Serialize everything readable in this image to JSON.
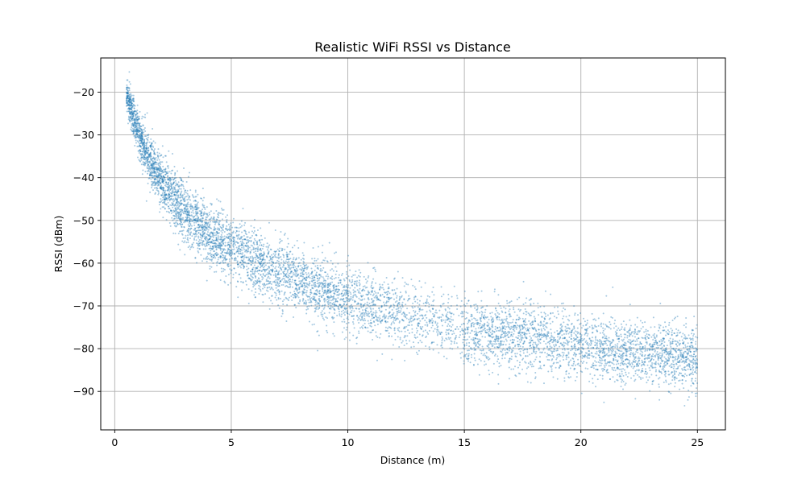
{
  "chart_data": {
    "type": "scatter",
    "title": "Realistic WiFi RSSI vs Distance",
    "xlabel": "Distance (m)",
    "ylabel": "RSSI (dBm)",
    "xlim": [
      -0.6,
      26.2
    ],
    "ylim": [
      -99,
      -12
    ],
    "xticks": [
      0,
      5,
      10,
      15,
      20,
      25
    ],
    "yticks": [
      -20,
      -30,
      -40,
      -50,
      -60,
      -70,
      -80,
      -90
    ],
    "grid": true,
    "point_color": "#1f77b4",
    "point_opacity": 0.4,
    "series": [
      {
        "trend": [
          [
            0.5,
            -20.5
          ],
          [
            0.75,
            -25.0
          ],
          [
            1.0,
            -29.5
          ],
          [
            1.25,
            -33.0
          ],
          [
            1.5,
            -36.0
          ],
          [
            2.0,
            -40.5
          ],
          [
            2.5,
            -44.5
          ],
          [
            3.0,
            -48.0
          ],
          [
            4.0,
            -53.0
          ],
          [
            5.0,
            -56.5
          ],
          [
            6.0,
            -59.5
          ],
          [
            7.0,
            -62.0
          ],
          [
            8.0,
            -64.0
          ],
          [
            9.0,
            -66.5
          ],
          [
            10.0,
            -68.5
          ],
          [
            11.0,
            -70.0
          ],
          [
            12.0,
            -71.5
          ],
          [
            13.0,
            -72.5
          ],
          [
            14.0,
            -73.5
          ],
          [
            15.0,
            -76.0
          ],
          [
            16.0,
            -76.5
          ],
          [
            17.0,
            -77.0
          ],
          [
            18.0,
            -77.5
          ],
          [
            19.0,
            -78.5
          ],
          [
            20.0,
            -79.5
          ],
          [
            21.0,
            -80.0
          ],
          [
            22.0,
            -80.5
          ],
          [
            23.0,
            -81.0
          ],
          [
            24.0,
            -82.0
          ],
          [
            25.0,
            -82.5
          ]
        ],
        "spread": [
          [
            0.5,
            2.0
          ],
          [
            1.0,
            2.5
          ],
          [
            2.0,
            3.0
          ],
          [
            3.0,
            3.3
          ],
          [
            5.0,
            3.6
          ],
          [
            10.0,
            3.8
          ],
          [
            12.0,
            3.9
          ],
          [
            15.0,
            3.9
          ],
          [
            20.0,
            3.9
          ],
          [
            25.0,
            3.8
          ]
        ],
        "x_range": [
          0.5,
          25.0
        ],
        "point_density": [
          [
            0.5,
            1.0
          ],
          [
            2.0,
            0.9
          ],
          [
            5.0,
            0.7
          ],
          [
            10.0,
            0.55
          ],
          [
            14.9,
            0.25
          ],
          [
            15.0,
            0.6
          ],
          [
            20.0,
            0.6
          ],
          [
            25.0,
            0.7
          ]
        ],
        "n_points": 7000
      }
    ]
  }
}
